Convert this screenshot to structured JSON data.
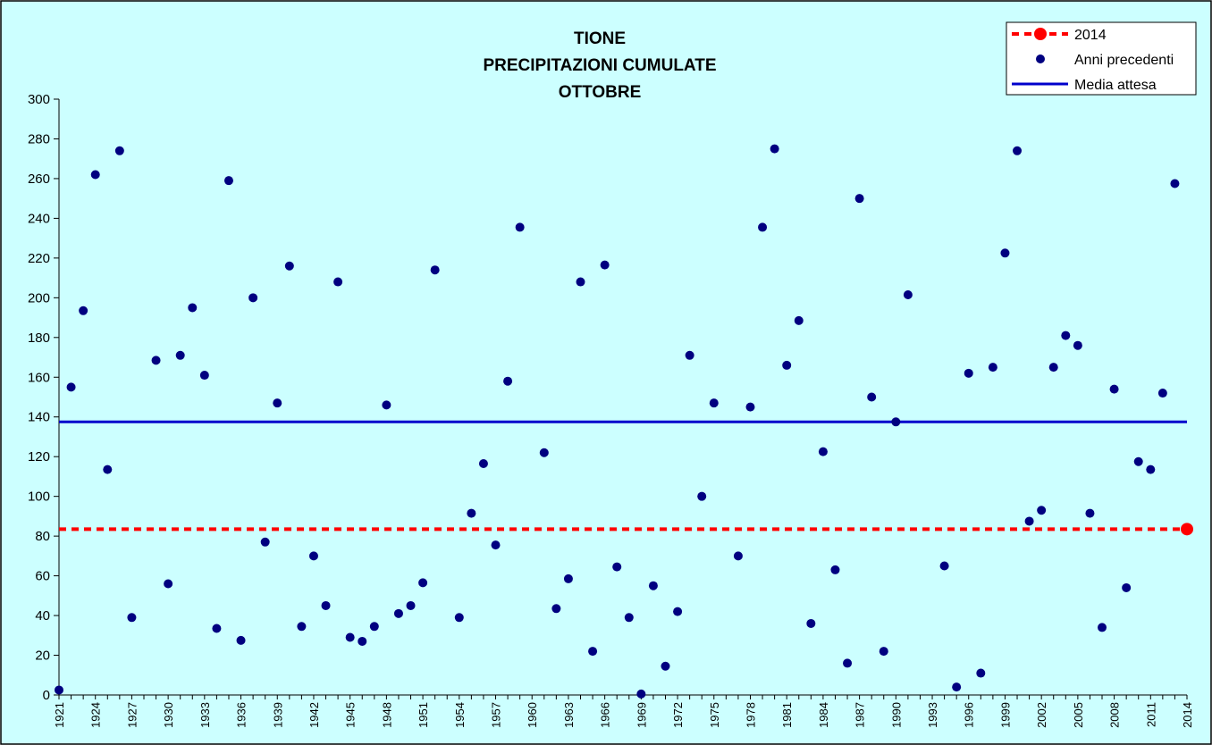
{
  "chart_data": {
    "type": "scatter",
    "title_lines": [
      "TIONE",
      "PRECIPITAZIONI CUMULATE",
      "OTTOBRE"
    ],
    "xlabel": "",
    "ylabel": "",
    "xlim": [
      1921,
      2014
    ],
    "ylim": [
      0,
      300
    ],
    "y_ticks": [
      0,
      20,
      40,
      60,
      80,
      100,
      120,
      140,
      160,
      180,
      200,
      220,
      240,
      260,
      280,
      300
    ],
    "x_tick_labels": [
      "1921",
      "1924",
      "1927",
      "1930",
      "1933",
      "1936",
      "1939",
      "1942",
      "1945",
      "1948",
      "1951",
      "1954",
      "1957",
      "1960",
      "1963",
      "1966",
      "1969",
      "1972",
      "1975",
      "1978",
      "1981",
      "1984",
      "1987",
      "1990",
      "1993",
      "1996",
      "1999",
      "2002",
      "2005",
      "2008",
      "2011",
      "2014"
    ],
    "legend_position": "top-right",
    "background_color": "#ccffff",
    "series": [
      {
        "name": "2014",
        "kind": "current-year",
        "color": "#ff0000",
        "points": [
          {
            "x": 2014,
            "y": 83.5
          }
        ],
        "reference_line_y": 83.5
      },
      {
        "name": "Anni precedenti",
        "kind": "scatter",
        "color": "#000080",
        "points": [
          {
            "x": 1921,
            "y": 2.5
          },
          {
            "x": 1922,
            "y": 155
          },
          {
            "x": 1923,
            "y": 193.5
          },
          {
            "x": 1924,
            "y": 262
          },
          {
            "x": 1925,
            "y": 113.5
          },
          {
            "x": 1926,
            "y": 274
          },
          {
            "x": 1927,
            "y": 39
          },
          {
            "x": 1929,
            "y": 168.5
          },
          {
            "x": 1930,
            "y": 56
          },
          {
            "x": 1931,
            "y": 171
          },
          {
            "x": 1932,
            "y": 195
          },
          {
            "x": 1933,
            "y": 161
          },
          {
            "x": 1934,
            "y": 33.5
          },
          {
            "x": 1935,
            "y": 259
          },
          {
            "x": 1936,
            "y": 27.5
          },
          {
            "x": 1937,
            "y": 200
          },
          {
            "x": 1938,
            "y": 77
          },
          {
            "x": 1939,
            "y": 147
          },
          {
            "x": 1940,
            "y": 216
          },
          {
            "x": 1941,
            "y": 34.5
          },
          {
            "x": 1942,
            "y": 70
          },
          {
            "x": 1943,
            "y": 45
          },
          {
            "x": 1944,
            "y": 208
          },
          {
            "x": 1945,
            "y": 29
          },
          {
            "x": 1946,
            "y": 27
          },
          {
            "x": 1947,
            "y": 34.5
          },
          {
            "x": 1948,
            "y": 146
          },
          {
            "x": 1949,
            "y": 41
          },
          {
            "x": 1950,
            "y": 45
          },
          {
            "x": 1951,
            "y": 56.5
          },
          {
            "x": 1952,
            "y": 214
          },
          {
            "x": 1954,
            "y": 39
          },
          {
            "x": 1955,
            "y": 91.5
          },
          {
            "x": 1956,
            "y": 116.5
          },
          {
            "x": 1957,
            "y": 75.5
          },
          {
            "x": 1958,
            "y": 158
          },
          {
            "x": 1959,
            "y": 235.5
          },
          {
            "x": 1961,
            "y": 122
          },
          {
            "x": 1962,
            "y": 43.5
          },
          {
            "x": 1963,
            "y": 58.5
          },
          {
            "x": 1964,
            "y": 208
          },
          {
            "x": 1965,
            "y": 22
          },
          {
            "x": 1966,
            "y": 216.5
          },
          {
            "x": 1967,
            "y": 64.5
          },
          {
            "x": 1968,
            "y": 39
          },
          {
            "x": 1969,
            "y": 0.5
          },
          {
            "x": 1970,
            "y": 55
          },
          {
            "x": 1971,
            "y": 14.5
          },
          {
            "x": 1972,
            "y": 42
          },
          {
            "x": 1973,
            "y": 171
          },
          {
            "x": 1974,
            "y": 100
          },
          {
            "x": 1975,
            "y": 147
          },
          {
            "x": 1977,
            "y": 70
          },
          {
            "x": 1978,
            "y": 145
          },
          {
            "x": 1979,
            "y": 235.5
          },
          {
            "x": 1980,
            "y": 275
          },
          {
            "x": 1981,
            "y": 166
          },
          {
            "x": 1982,
            "y": 188.5
          },
          {
            "x": 1983,
            "y": 36
          },
          {
            "x": 1984,
            "y": 122.5
          },
          {
            "x": 1985,
            "y": 63
          },
          {
            "x": 1986,
            "y": 16
          },
          {
            "x": 1987,
            "y": 250
          },
          {
            "x": 1988,
            "y": 150
          },
          {
            "x": 1989,
            "y": 22
          },
          {
            "x": 1990,
            "y": 137.5
          },
          {
            "x": 1991,
            "y": 201.5
          },
          {
            "x": 1994,
            "y": 65
          },
          {
            "x": 1995,
            "y": 4
          },
          {
            "x": 1996,
            "y": 162
          },
          {
            "x": 1997,
            "y": 11
          },
          {
            "x": 1998,
            "y": 165
          },
          {
            "x": 1999,
            "y": 222.5
          },
          {
            "x": 2000,
            "y": 274
          },
          {
            "x": 2001,
            "y": 87.5
          },
          {
            "x": 2002,
            "y": 93
          },
          {
            "x": 2003,
            "y": 165
          },
          {
            "x": 2004,
            "y": 181
          },
          {
            "x": 2005,
            "y": 176
          },
          {
            "x": 2006,
            "y": 91.5
          },
          {
            "x": 2007,
            "y": 34
          },
          {
            "x": 2008,
            "y": 154
          },
          {
            "x": 2009,
            "y": 54
          },
          {
            "x": 2010,
            "y": 117.5
          },
          {
            "x": 2011,
            "y": 113.5
          },
          {
            "x": 2012,
            "y": 152
          },
          {
            "x": 2013,
            "y": 257.5
          }
        ]
      },
      {
        "name": "Media attesa",
        "kind": "line",
        "color": "#0000cc",
        "y": 137.5
      }
    ]
  }
}
